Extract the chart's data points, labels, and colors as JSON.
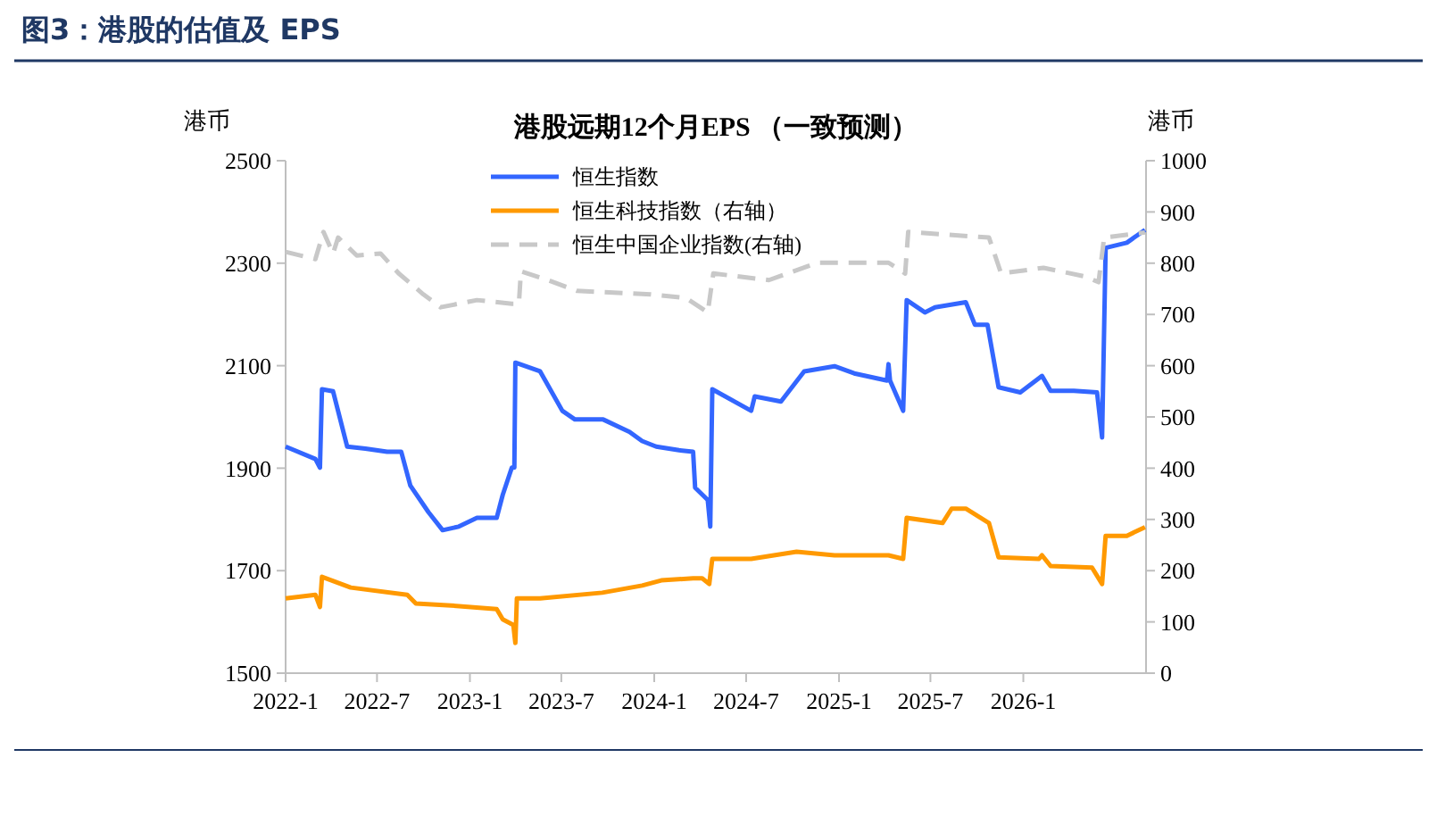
{
  "chart_data": {
    "type": "line",
    "title": "图3：港股的估值及 EPS",
    "subtitle": "港股远期12个月EPS （一致预测）",
    "ylabel": "港币",
    "y2label": "港币",
    "xlim": [
      "2022-01",
      "2026-09"
    ],
    "xticks": [
      {
        "value": "2022-01",
        "label": "2022-1"
      },
      {
        "value": "2022-07",
        "label": "2022-7"
      },
      {
        "value": "2023-01",
        "label": "2023-1"
      },
      {
        "value": "2023-07",
        "label": "2023-7"
      },
      {
        "value": "2024-01",
        "label": "2024-1"
      },
      {
        "value": "2024-07",
        "label": "2024-7"
      },
      {
        "value": "2025-01",
        "label": "2025-1"
      },
      {
        "value": "2025-07",
        "label": "2025-7"
      },
      {
        "value": "2026-01",
        "label": "2026-1"
      }
    ],
    "ylim": [
      1500,
      2500
    ],
    "yticks": [
      1500,
      1700,
      1900,
      2100,
      2300,
      2500
    ],
    "y2lim": [
      0,
      1000
    ],
    "y2ticks": [
      0,
      100,
      200,
      300,
      400,
      500,
      600,
      700,
      800,
      900,
      1000
    ],
    "legend": "top",
    "grid": false,
    "marker": "none",
    "series": [
      {
        "name": "恒生指数",
        "color": "#3366ff",
        "line_style": "solid",
        "x": [
          "2022-01-01",
          "2022-03-01",
          "2022-03-10",
          "2022-03-14",
          "2022-04-05",
          "2022-05-03",
          "2022-06-08",
          "2022-07-21",
          "2022-08-18",
          "2022-09-05",
          "2022-10-11",
          "2022-11-08",
          "2022-12-10",
          "2023-01-15",
          "2023-02-23",
          "2023-03-07",
          "2023-03-25",
          "2023-03-30",
          "2023-04-01",
          "2023-05-20",
          "2023-07-03",
          "2023-07-28",
          "2023-09-22",
          "2023-11-13",
          "2023-12-08",
          "2024-01-05",
          "2024-02-19",
          "2024-03-18",
          "2024-03-22",
          "2024-04-16",
          "2024-04-21",
          "2024-04-25",
          "2024-07-11",
          "2024-07-18",
          "2024-09-08",
          "2024-10-24",
          "2024-12-23",
          "2025-01-31",
          "2025-04-06",
          "2025-04-09",
          "2025-04-12",
          "2025-05-08",
          "2025-05-15",
          "2025-06-20",
          "2025-07-10",
          "2025-09-09",
          "2025-09-27",
          "2025-10-22",
          "2025-11-13",
          "2025-12-26",
          "2026-02-07",
          "2026-02-24",
          "2026-04-11",
          "2026-05-27",
          "2026-06-06",
          "2026-06-13",
          "2026-07-25",
          "2026-08-30"
        ],
        "values": [
          1942,
          1918,
          1901,
          2054,
          2050,
          1942,
          1938,
          1932,
          1932,
          1866,
          1814,
          1779,
          1786,
          1803,
          1803,
          1848,
          1901,
          1901,
          2106,
          2089,
          2012,
          1995,
          1995,
          1971,
          1953,
          1942,
          1935,
          1932,
          1862,
          1838,
          1786,
          2054,
          2012,
          2040,
          2030,
          2089,
          2099,
          2085,
          2071,
          2103,
          2071,
          2012,
          2228,
          2204,
          2214,
          2224,
          2180,
          2180,
          2058,
          2048,
          2080,
          2051,
          2051,
          2048,
          1960,
          2330,
          2340,
          2365
        ]
      },
      {
        "name": "恒生科技指数（右轴）",
        "color": "#ff9900",
        "axis": "y2",
        "line_style": "solid",
        "x": [
          "2022-01-01",
          "2022-03-01",
          "2022-03-10",
          "2022-03-14",
          "2022-05-10",
          "2022-08-30",
          "2022-09-16",
          "2022-11-25",
          "2023-02-23",
          "2023-03-07",
          "2023-03-28",
          "2023-04-01",
          "2023-04-04",
          "2023-05-20",
          "2023-09-20",
          "2023-12-08",
          "2024-01-15",
          "2024-03-18",
          "2024-04-05",
          "2024-04-19",
          "2024-04-25",
          "2024-07-11",
          "2024-10-09",
          "2024-12-23",
          "2025-04-09",
          "2025-05-08",
          "2025-05-15",
          "2025-07-25",
          "2025-08-12",
          "2025-09-09",
          "2025-10-25",
          "2025-11-13",
          "2026-02-01",
          "2026-02-07",
          "2026-02-24",
          "2026-05-17",
          "2026-06-06",
          "2026-06-13",
          "2026-07-25",
          "2026-08-30"
        ],
        "values": [
          146,
          153,
          129,
          188,
          167,
          153,
          136,
          132,
          125,
          105,
          94,
          59,
          146,
          146,
          157,
          171,
          181,
          185,
          185,
          174,
          223,
          223,
          237,
          230,
          230,
          223,
          303,
          293,
          321,
          321,
          293,
          226,
          223,
          230,
          209,
          206,
          174,
          268,
          268,
          285
        ]
      },
      {
        "name": "恒生中国企业指数(右轴)",
        "color": "#c8c8c8",
        "axis": "y2",
        "line_style": "dashed",
        "x": [
          "2022-01-01",
          "2022-03-01",
          "2022-03-17",
          "2022-04-05",
          "2022-04-15",
          "2022-05-22",
          "2022-07-08",
          "2022-08-13",
          "2022-10-01",
          "2022-11-04",
          "2023-01-15",
          "2023-03-25",
          "2023-04-08",
          "2023-04-12",
          "2023-06-05",
          "2023-08-01",
          "2023-12-25",
          "2024-03-04",
          "2024-04-16",
          "2024-04-27",
          "2024-08-15",
          "2024-11-20",
          "2025-04-09",
          "2025-05-12",
          "2025-05-18",
          "2025-10-25",
          "2025-11-18",
          "2026-02-10",
          "2026-05-04",
          "2026-05-30",
          "2026-06-10",
          "2026-08-30"
        ],
        "values": [
          822,
          808,
          861,
          819,
          850,
          815,
          819,
          780,
          739,
          714,
          728,
          721,
          721,
          784,
          767,
          746,
          739,
          732,
          704,
          780,
          767,
          801,
          801,
          780,
          861,
          850,
          780,
          791,
          774,
          763,
          850,
          860
        ]
      }
    ]
  }
}
